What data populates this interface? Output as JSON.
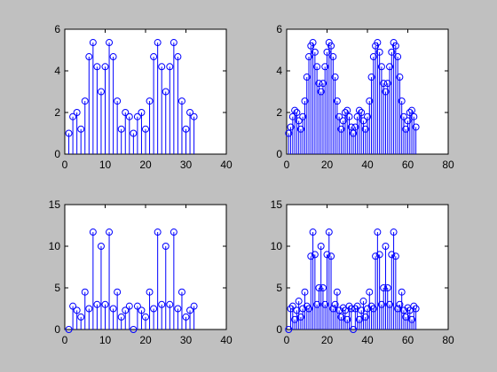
{
  "chart_data": [
    {
      "type": "stem",
      "color": "#0000ff",
      "x": [
        1,
        2,
        3,
        4,
        5,
        6,
        7,
        8,
        9,
        10,
        11,
        12,
        13,
        14,
        15,
        16,
        17,
        18,
        19,
        20,
        21,
        22,
        23,
        24,
        25,
        26,
        27,
        28,
        29,
        30,
        31,
        32
      ],
      "values": [
        1.0,
        1.8,
        2.0,
        1.2,
        2.55,
        4.68,
        5.36,
        4.2,
        3.0,
        4.2,
        5.36,
        4.68,
        2.55,
        1.2,
        2.0,
        1.8,
        1.0,
        1.8,
        2.0,
        1.2,
        2.55,
        4.68,
        5.36,
        4.2,
        3.0,
        4.2,
        5.36,
        4.68,
        2.55,
        1.2,
        2.0,
        1.8
      ],
      "xlim": [
        0,
        40
      ],
      "xticks": [
        0,
        10,
        20,
        30,
        40
      ],
      "ylim": [
        0,
        6
      ],
      "yticks": [
        0,
        2,
        4,
        6
      ]
    },
    {
      "type": "stem",
      "color": "#0000ff",
      "x": [
        1,
        2,
        3,
        4,
        5,
        6,
        7,
        8,
        9,
        10,
        11,
        12,
        13,
        14,
        15,
        16,
        17,
        18,
        19,
        20,
        21,
        22,
        23,
        24,
        25,
        26,
        27,
        28,
        29,
        30,
        31,
        32,
        33,
        34,
        35,
        36,
        37,
        38,
        39,
        40,
        41,
        42,
        43,
        44,
        45,
        46,
        47,
        48,
        49,
        50,
        51,
        52,
        53,
        54,
        55,
        56,
        57,
        58,
        59,
        60,
        61,
        62,
        63,
        64
      ],
      "values": [
        1.0,
        1.3,
        1.8,
        2.1,
        2.0,
        1.6,
        1.2,
        1.8,
        2.55,
        3.7,
        4.68,
        5.2,
        5.36,
        4.9,
        4.2,
        3.4,
        3.0,
        3.4,
        4.2,
        4.9,
        5.36,
        5.2,
        4.68,
        3.7,
        2.55,
        1.8,
        1.2,
        1.6,
        2.0,
        2.1,
        1.8,
        1.3,
        1.0,
        1.3,
        1.8,
        2.1,
        2.0,
        1.6,
        1.2,
        1.8,
        2.55,
        3.7,
        4.68,
        5.2,
        5.36,
        4.9,
        4.2,
        3.4,
        3.0,
        3.4,
        4.2,
        4.9,
        5.36,
        5.2,
        4.68,
        3.7,
        2.55,
        1.8,
        1.2,
        1.6,
        2.0,
        2.1,
        1.8,
        1.3
      ],
      "xlim": [
        0,
        80
      ],
      "xticks": [
        0,
        20,
        40,
        60,
        80
      ],
      "ylim": [
        0,
        6
      ],
      "yticks": [
        0,
        2,
        4,
        6
      ]
    },
    {
      "type": "stem",
      "color": "#0000ff",
      "x": [
        1,
        2,
        3,
        4,
        5,
        6,
        7,
        8,
        9,
        10,
        11,
        12,
        13,
        14,
        15,
        16,
        17,
        18,
        19,
        20,
        21,
        22,
        23,
        24,
        25,
        26,
        27,
        28,
        29,
        30,
        31,
        32
      ],
      "values": [
        0,
        2.8,
        2.3,
        1.5,
        4.5,
        2.5,
        11.7,
        3,
        10,
        3,
        11.7,
        2.5,
        4.5,
        1.5,
        2.3,
        2.8,
        0,
        2.8,
        2.3,
        1.5,
        4.5,
        2.5,
        11.7,
        3,
        10,
        3,
        11.7,
        2.5,
        4.5,
        1.5,
        2.3,
        2.8
      ],
      "xlim": [
        0,
        40
      ],
      "xticks": [
        0,
        10,
        20,
        30,
        40
      ],
      "ylim": [
        0,
        15
      ],
      "yticks": [
        0,
        5,
        10,
        15
      ]
    },
    {
      "type": "stem",
      "color": "#0000ff",
      "x": [
        1,
        2,
        3,
        4,
        5,
        6,
        7,
        8,
        9,
        10,
        11,
        12,
        13,
        14,
        15,
        16,
        17,
        18,
        19,
        20,
        21,
        22,
        23,
        24,
        25,
        26,
        27,
        28,
        29,
        30,
        31,
        32,
        33,
        34,
        35,
        36,
        37,
        38,
        39,
        40,
        41,
        42,
        43,
        44,
        45,
        46,
        47,
        48,
        49,
        50,
        51,
        52,
        53,
        54,
        55,
        56,
        57,
        58,
        59,
        60,
        61,
        62,
        63,
        64
      ],
      "values": [
        0,
        2.5,
        2.8,
        1.2,
        2.3,
        3.4,
        1.5,
        2.5,
        4.5,
        2.8,
        2.5,
        8.8,
        11.7,
        9,
        3,
        5,
        10,
        5,
        3,
        9,
        11.7,
        8.8,
        2.5,
        3,
        4.5,
        2.3,
        1.5,
        2.6,
        2.3,
        1.2,
        2.8,
        2.5,
        0,
        2.5,
        2.8,
        1.2,
        2.3,
        3.4,
        1.5,
        2.5,
        4.5,
        2.8,
        2.5,
        8.8,
        11.7,
        9,
        3,
        5,
        10,
        5,
        3,
        9,
        11.7,
        8.8,
        2.5,
        3,
        4.5,
        2.3,
        1.5,
        2.6,
        2.3,
        1.2,
        2.8,
        2.5
      ],
      "xlim": [
        0,
        80
      ],
      "xticks": [
        0,
        20,
        40,
        60,
        80
      ],
      "ylim": [
        0,
        15
      ],
      "yticks": [
        0,
        5,
        10,
        15
      ]
    }
  ]
}
